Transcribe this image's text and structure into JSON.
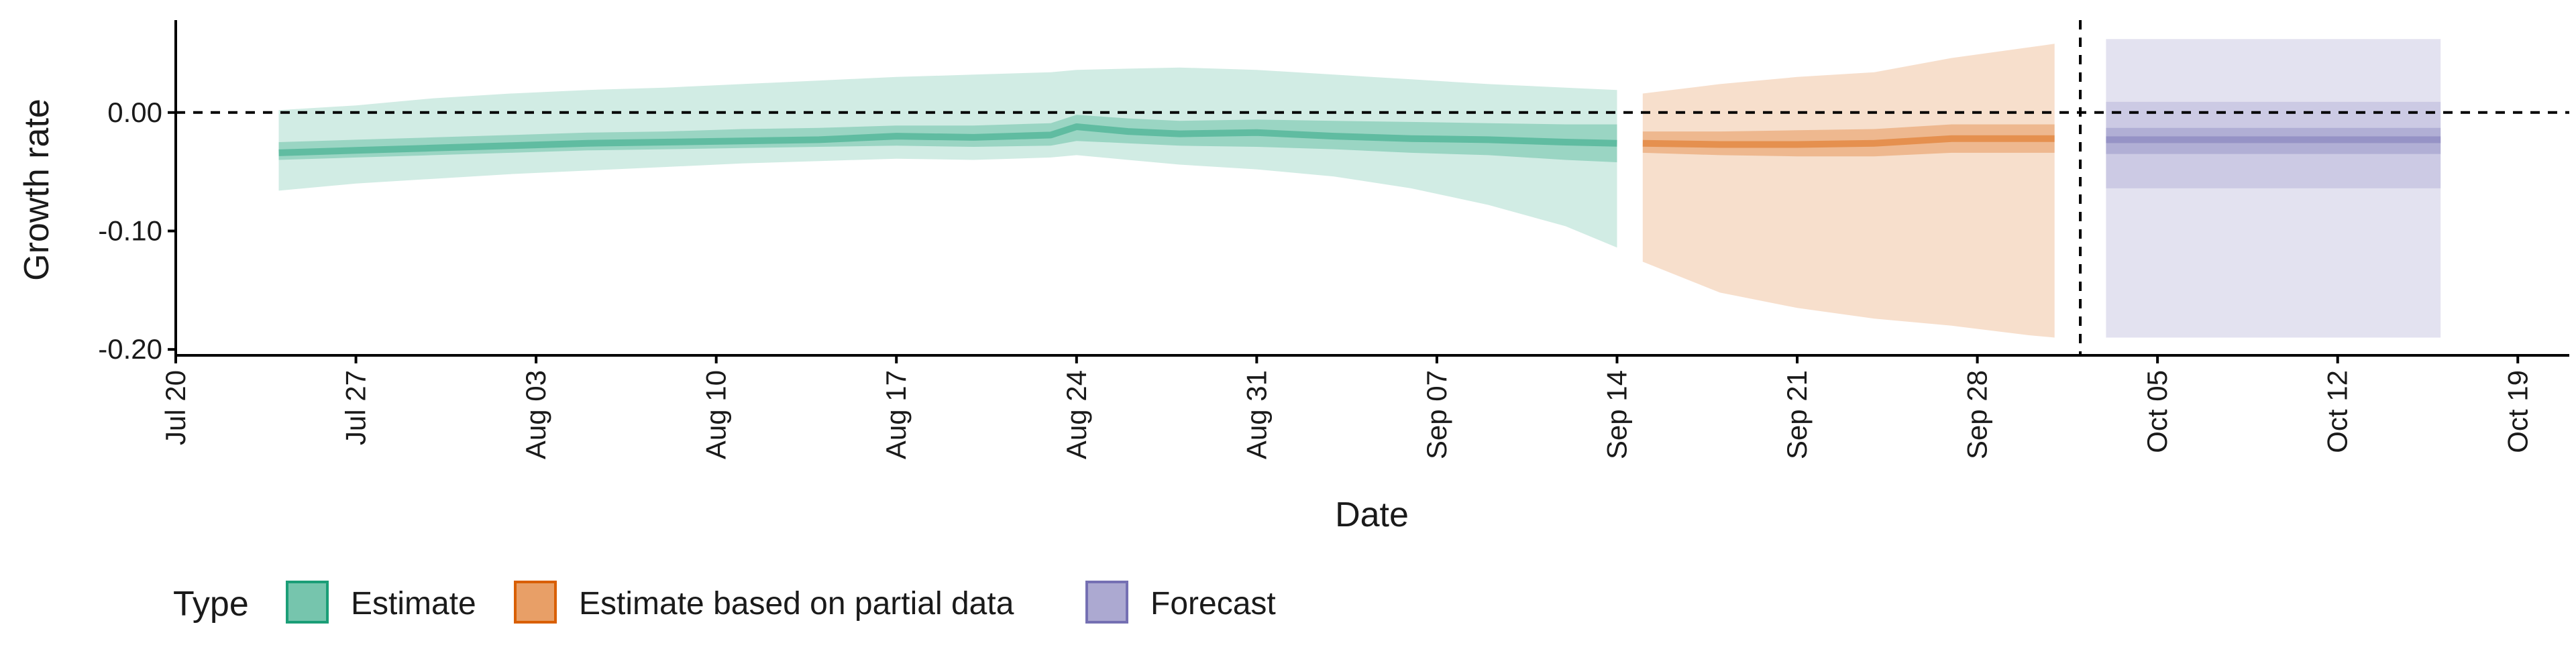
{
  "chart_data": {
    "type": "area",
    "title": "",
    "xlabel": "Date",
    "ylabel": "Growth rate",
    "x_start": "2020-07-20",
    "xlim": [
      "2020-07-20",
      "2020-10-21"
    ],
    "ylim": [
      -0.205,
      0.078
    ],
    "x_ticks": [
      "Jul 20",
      "Jul 27",
      "Aug 03",
      "Aug 10",
      "Aug 17",
      "Aug 24",
      "Aug 31",
      "Sep 07",
      "Sep 14",
      "Sep 21",
      "Sep 28",
      "Oct 05",
      "Oct 12",
      "Oct 19"
    ],
    "x_tick_dates": [
      "2020-07-20",
      "2020-07-27",
      "2020-08-03",
      "2020-08-10",
      "2020-08-17",
      "2020-08-24",
      "2020-08-31",
      "2020-09-07",
      "2020-09-14",
      "2020-09-21",
      "2020-09-28",
      "2020-10-05",
      "2020-10-12",
      "2020-10-19"
    ],
    "y_ticks": [
      0.0,
      -0.1,
      -0.2
    ],
    "y_tick_labels": [
      "0.00",
      "-0.10",
      "-0.20"
    ],
    "reference_lines": {
      "horizontal_y": 0.0,
      "vertical_date": "2020-10-02"
    },
    "legend": {
      "title": "Type",
      "position": "bottom",
      "entries": [
        "Estimate",
        "Estimate based on partial data",
        "Forecast"
      ]
    },
    "grid": false,
    "series": [
      {
        "name": "Estimate",
        "color": "#1b9e77",
        "fill": "#b3e0d2",
        "x_dates": [
          "2020-07-24",
          "2020-07-27",
          "2020-07-30",
          "2020-08-02",
          "2020-08-05",
          "2020-08-08",
          "2020-08-11",
          "2020-08-14",
          "2020-08-17",
          "2020-08-20",
          "2020-08-23",
          "2020-08-24",
          "2020-08-26",
          "2020-08-28",
          "2020-08-31",
          "2020-09-03",
          "2020-09-06",
          "2020-09-09",
          "2020-09-12",
          "2020-09-14"
        ],
        "median": [
          -0.034,
          -0.032,
          -0.03,
          -0.028,
          -0.026,
          -0.025,
          -0.024,
          -0.023,
          -0.02,
          -0.021,
          -0.019,
          -0.012,
          -0.016,
          -0.018,
          -0.017,
          -0.02,
          -0.022,
          -0.023,
          -0.025,
          -0.026
        ],
        "lower_50": [
          -0.04,
          -0.038,
          -0.036,
          -0.034,
          -0.032,
          -0.031,
          -0.03,
          -0.029,
          -0.028,
          -0.029,
          -0.028,
          -0.024,
          -0.026,
          -0.028,
          -0.029,
          -0.031,
          -0.034,
          -0.036,
          -0.04,
          -0.042
        ],
        "upper_50": [
          -0.025,
          -0.023,
          -0.021,
          -0.019,
          -0.017,
          -0.016,
          -0.014,
          -0.013,
          -0.011,
          -0.011,
          -0.009,
          -0.002,
          -0.005,
          -0.007,
          -0.006,
          -0.007,
          -0.008,
          -0.009,
          -0.01,
          -0.01
        ],
        "lower_90": [
          -0.066,
          -0.06,
          -0.056,
          -0.052,
          -0.049,
          -0.046,
          -0.043,
          -0.041,
          -0.039,
          -0.04,
          -0.038,
          -0.036,
          -0.04,
          -0.044,
          -0.048,
          -0.054,
          -0.064,
          -0.078,
          -0.096,
          -0.114
        ],
        "upper_90": [
          0.002,
          0.006,
          0.012,
          0.016,
          0.019,
          0.021,
          0.024,
          0.027,
          0.03,
          0.032,
          0.034,
          0.036,
          0.037,
          0.038,
          0.036,
          0.032,
          0.028,
          0.024,
          0.021,
          0.019
        ]
      },
      {
        "name": "Estimate based on partial data",
        "color": "#d95f02",
        "fill": "#f8d9c3",
        "x_dates": [
          "2020-09-15",
          "2020-09-18",
          "2020-09-21",
          "2020-09-24",
          "2020-09-27",
          "2020-09-30",
          "2020-10-01"
        ],
        "median": [
          -0.026,
          -0.027,
          -0.027,
          -0.026,
          -0.022,
          -0.022,
          -0.022
        ],
        "lower_50": [
          -0.034,
          -0.036,
          -0.037,
          -0.037,
          -0.034,
          -0.034,
          -0.034
        ],
        "upper_50": [
          -0.016,
          -0.016,
          -0.015,
          -0.014,
          -0.01,
          -0.01,
          -0.01
        ],
        "lower_90": [
          -0.126,
          -0.152,
          -0.165,
          -0.174,
          -0.18,
          -0.188,
          -0.19
        ],
        "upper_90": [
          0.016,
          0.024,
          0.03,
          0.034,
          0.046,
          0.055,
          0.058
        ]
      },
      {
        "name": "Forecast",
        "color": "#7570b3",
        "fill": "#e1e0f0",
        "x_dates": [
          "2020-10-03",
          "2020-10-16"
        ],
        "median": [
          -0.023,
          -0.023
        ],
        "lower_50": [
          -0.035,
          -0.035
        ],
        "upper_50": [
          -0.013,
          -0.013
        ],
        "lower_90": [
          -0.19,
          -0.19
        ],
        "upper_90": [
          0.062,
          0.062
        ],
        "lower_mid": [
          -0.064,
          -0.064
        ],
        "upper_mid": [
          0.009,
          0.009
        ]
      }
    ]
  }
}
